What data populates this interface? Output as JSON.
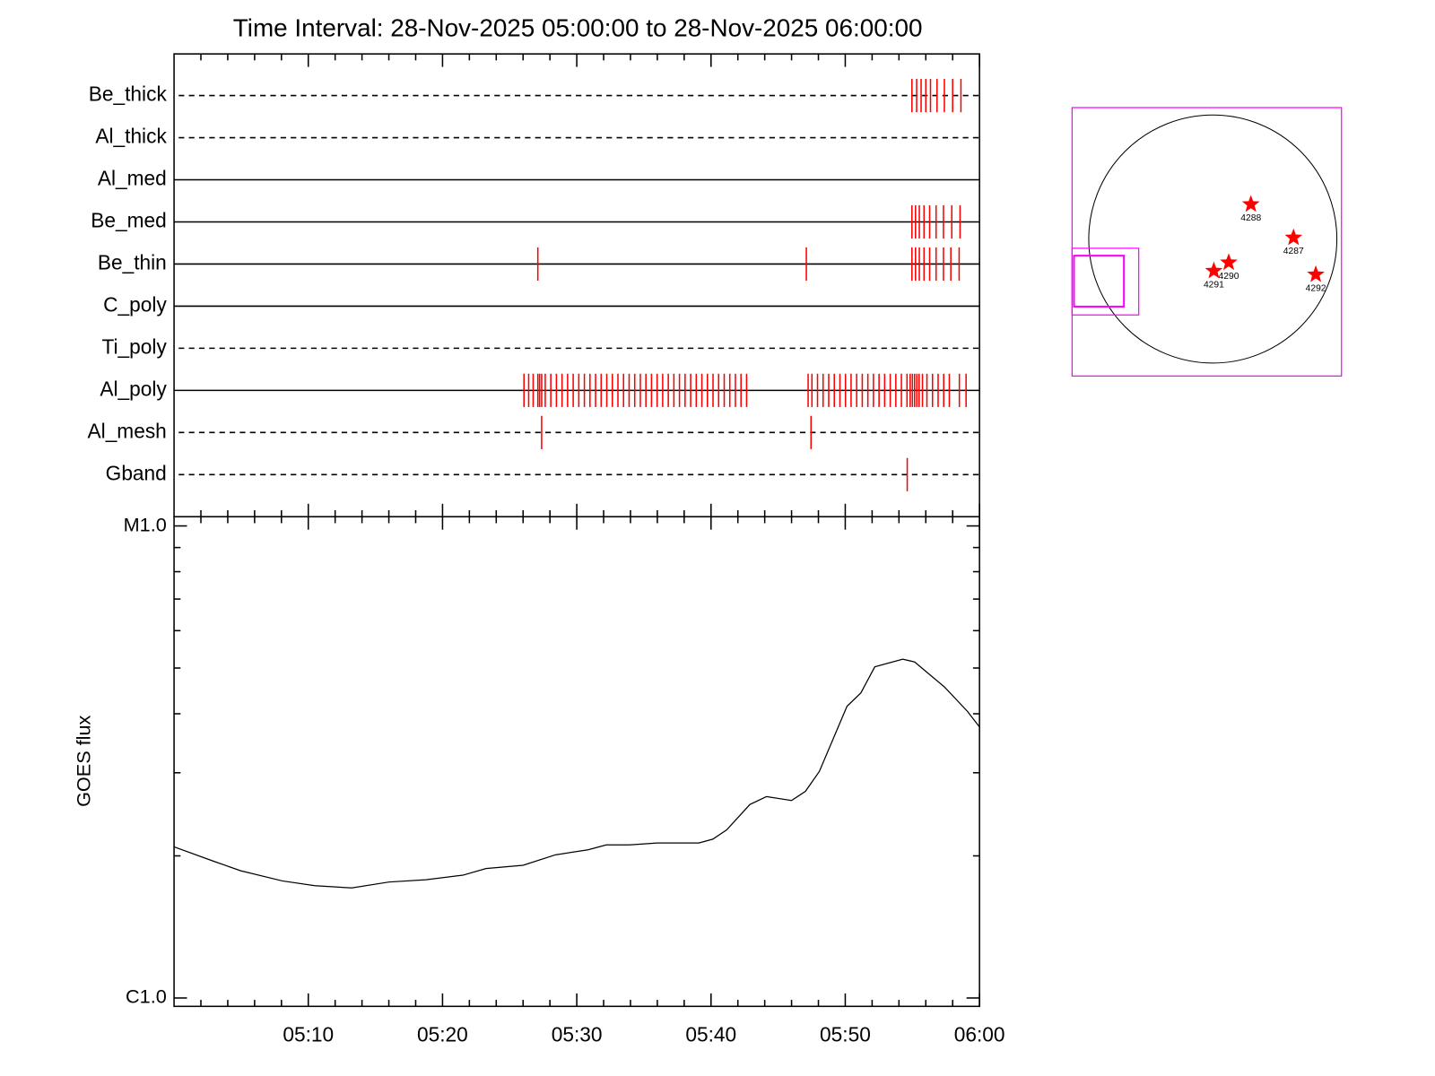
{
  "chart_data": [
    {
      "type": "event",
      "title": "Time Interval: 28-Nov-2025 05:00:00 to 28-Nov-2025 06:00:00",
      "color": "#ff0000",
      "xlim": [
        "05:00:00",
        "06:00:00"
      ],
      "minor_ticks": 5,
      "rows": [
        {
          "name": "Be_thick",
          "style": "dashed",
          "events": [
            "05:54:58",
            "05:55:19",
            "05:55:39",
            "05:56:00",
            "05:56:21",
            "05:56:50",
            "05:57:23",
            "05:58:00",
            "05:58:37"
          ]
        },
        {
          "name": "Al_thick",
          "style": "dashed",
          "events": []
        },
        {
          "name": "Al_med",
          "style": "solid",
          "events": []
        },
        {
          "name": "Be_med",
          "style": "solid",
          "events": [
            "05:54:58",
            "05:55:14",
            "05:55:31",
            "05:55:52",
            "05:56:17",
            "05:56:46",
            "05:57:19",
            "05:57:56",
            "05:58:33"
          ]
        },
        {
          "name": "Be_thin",
          "style": "solid",
          "events": [
            "05:27:06",
            "05:47:06",
            "05:54:58",
            "05:55:14",
            "05:55:31",
            "05:55:52",
            "05:56:17",
            "05:56:46",
            "05:57:19",
            "05:57:52",
            "05:58:29"
          ]
        },
        {
          "name": "C_poly",
          "style": "solid",
          "events": []
        },
        {
          "name": "Ti_poly",
          "style": "dashed",
          "events": []
        },
        {
          "name": "Al_poly",
          "style": "solid",
          "events": [
            "05:26:04",
            "05:26:25",
            "05:26:45",
            "05:27:06",
            "05:27:14",
            "05:27:23",
            "05:27:39",
            "05:28:04",
            "05:28:29",
            "05:28:54",
            "05:29:19",
            "05:29:44",
            "05:30:09",
            "05:30:34",
            "05:30:59",
            "05:31:24",
            "05:31:49",
            "05:32:14",
            "05:32:39",
            "05:33:04",
            "05:33:29",
            "05:33:54",
            "05:34:19",
            "05:34:44",
            "05:35:09",
            "05:35:34",
            "05:35:59",
            "05:36:24",
            "05:36:49",
            "05:37:14",
            "05:37:39",
            "05:38:04",
            "05:38:29",
            "05:38:54",
            "05:39:19",
            "05:39:44",
            "05:40:09",
            "05:40:34",
            "05:40:59",
            "05:41:24",
            "05:41:49",
            "05:42:14",
            "05:42:39",
            "05:47:14",
            "05:47:31",
            "05:47:56",
            "05:48:21",
            "05:48:46",
            "05:49:11",
            "05:49:36",
            "05:50:01",
            "05:50:26",
            "05:50:51",
            "05:51:16",
            "05:51:41",
            "05:52:06",
            "05:52:31",
            "05:52:56",
            "05:53:21",
            "05:53:46",
            "05:54:11",
            "05:54:36",
            "05:54:50",
            "05:55:00",
            "05:55:10",
            "05:55:20",
            "05:55:30",
            "05:55:45",
            "05:56:05",
            "05:56:30",
            "05:56:55",
            "05:57:20",
            "05:57:45",
            "05:58:30",
            "05:59:00"
          ]
        },
        {
          "name": "Al_mesh",
          "style": "dashed",
          "events": [
            "05:27:23",
            "05:47:27"
          ]
        },
        {
          "name": "Gband",
          "style": "dashed",
          "events": [
            "05:54:37"
          ]
        }
      ]
    },
    {
      "type": "line",
      "ylabel": "GOES flux",
      "color": "#000000",
      "log": true,
      "minor_ticks": 5,
      "xlim": [
        "05:00:00",
        "06:00:00"
      ],
      "xticks": [
        "05:10",
        "05:20",
        "05:30",
        "05:40",
        "05:50",
        "06:00"
      ],
      "ylim": [
        9.6e-07,
        1.046e-05
      ],
      "yticks": [
        {
          "value": 1e-06,
          "label": "C1.0"
        },
        {
          "value": 1e-05,
          "label": "M1.0"
        }
      ],
      "x": [
        "05:00:00",
        "05:02:54",
        "05:04:58",
        "05:08:04",
        "05:10:29",
        "05:13:14",
        "05:16:00",
        "05:18:46",
        "05:21:31",
        "05:23:14",
        "05:26:00",
        "05:28:25",
        "05:30:50",
        "05:32:12",
        "05:33:56",
        "05:36:00",
        "05:39:06",
        "05:40:08",
        "05:41:10",
        "05:42:54",
        "05:44:08",
        "05:46:00",
        "05:47:02",
        "05:48:04",
        "05:50:08",
        "05:51:10",
        "05:52:12",
        "05:54:17",
        "05:55:10",
        "05:57:23",
        "05:59:06",
        "06:00:00"
      ],
      "values": [
        2.09e-06,
        1.95e-06,
        1.86e-06,
        1.77e-06,
        1.73e-06,
        1.71e-06,
        1.76e-06,
        1.78e-06,
        1.82e-06,
        1.88e-06,
        1.91e-06,
        2.01e-06,
        2.06e-06,
        2.11e-06,
        2.11e-06,
        2.13e-06,
        2.13e-06,
        2.17e-06,
        2.27e-06,
        2.57e-06,
        2.67e-06,
        2.62e-06,
        2.74e-06,
        3.02e-06,
        4.15e-06,
        4.43e-06,
        5.03e-06,
        5.22e-06,
        5.15e-06,
        4.56e-06,
        4.05e-06,
        3.75e-06
      ]
    },
    {
      "type": "map",
      "color": "#ff0000",
      "box_color": "#ff00ff",
      "xlim": [
        -1107,
        1010
      ],
      "ylim": [
        -1082,
        1030
      ],
      "labels": [
        "4288",
        "4287",
        "4290",
        "4291",
        "4292"
      ],
      "x": [
        298,
        633,
        124,
        7,
        808
      ],
      "y": [
        269,
        7,
        -189,
        -255,
        -284
      ]
    }
  ]
}
